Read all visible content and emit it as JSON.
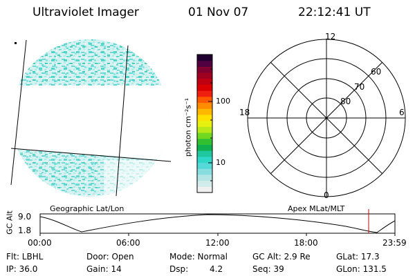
{
  "header": {
    "instrument": "Ultraviolet Imager",
    "date": "01 Nov 07",
    "time": "22:12:41 UT"
  },
  "colorbar": {
    "unit_label": "photon cm⁻²s⁻¹",
    "ticks": [
      "100",
      "10"
    ],
    "scale": "log",
    "colors": [
      "#f0f0f0",
      "#d2ecec",
      "#b4e4e4",
      "#88dede",
      "#55d8d8",
      "#30d6c8",
      "#20c8a0",
      "#10b050",
      "#30c030",
      "#70d820",
      "#b8e818",
      "#e8f010",
      "#ffe000",
      "#ffb800",
      "#ff8c00",
      "#ff5a00",
      "#f02010",
      "#d80000",
      "#c00010",
      "#a00020",
      "#800030",
      "#500040",
      "#200030"
    ]
  },
  "left_panel": {
    "label": "Geographic Lat/Lon"
  },
  "right_panel": {
    "label": "Apex MLat/MLT",
    "mlt_labels": {
      "top": "12",
      "left": "18",
      "right": "6",
      "bottom": "0"
    },
    "mlat_labels": [
      "60",
      "70",
      "80"
    ]
  },
  "altitude_plot": {
    "ylabel": "GC Alt",
    "yticks": [
      "9.0",
      "1.8"
    ],
    "xticks": [
      "00:00",
      "06:00",
      "12:00",
      "18:00",
      "23:59"
    ],
    "marker_time": "22:12",
    "marker_color": "#d00000"
  },
  "status": {
    "row1": {
      "filter": "Flt: LBHL",
      "door": "Door: Open",
      "mode": "Mode: Normal",
      "gc_alt": "GC Alt: 2.9 Re",
      "glat": "GLat:  17.3"
    },
    "row2": {
      "ip": "IP: 36.0",
      "gain": "Gain: 14",
      "dsp_label": "Dsp:",
      "dsp_value": "4.2",
      "seq": "Seq: 39",
      "glon": "GLon: 131.5"
    }
  }
}
